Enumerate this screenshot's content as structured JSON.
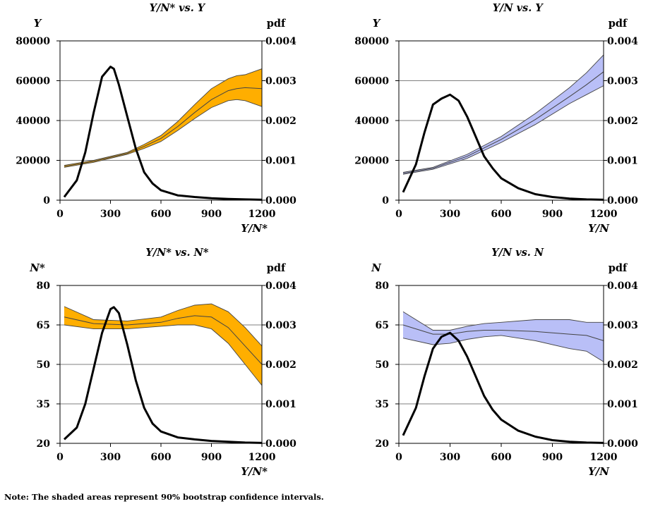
{
  "figure_note": "Note: The shaded areas represent 90% bootstrap confidence intervals.",
  "colors": {
    "orange_band": "#FFAE00",
    "blue_band": "#B9BFF7",
    "gray_band": "#A0A0A0",
    "band_edge": "#444444",
    "pdf_line": "#000000",
    "grid": "#000000"
  },
  "chart_data": [
    {
      "type": "line",
      "title": "Y/N* vs. Y",
      "ylabel": "Y",
      "y2label": "pdf",
      "xlabel": "Y/N*",
      "xlim": [
        0,
        1200
      ],
      "xticks": [
        0,
        300,
        600,
        900,
        1200
      ],
      "ylim": [
        0,
        80000
      ],
      "yticks": [
        "0",
        "20000",
        "40000",
        "60000",
        "80000"
      ],
      "y2lim": [
        0,
        0.004
      ],
      "y2ticks": [
        "0.000",
        "0.001",
        "0.002",
        "0.003",
        "0.004"
      ],
      "grid": true,
      "band_color": "orange",
      "series": [
        {
          "role": "pdf",
          "axis": "right",
          "x": [
            25,
            100,
            150,
            200,
            250,
            300,
            320,
            350,
            400,
            450,
            500,
            550,
            600,
            700,
            800,
            900,
            1000,
            1100,
            1200
          ],
          "y": [
            8e-05,
            0.0005,
            0.0012,
            0.0022,
            0.0031,
            0.00335,
            0.0033,
            0.0029,
            0.0021,
            0.0013,
            0.0007,
            0.00042,
            0.00025,
            0.00012,
            8e-05,
            5e-05,
            3e-05,
            2e-05,
            1e-05
          ]
        },
        {
          "role": "estimate",
          "axis": "left",
          "x": [
            25,
            200,
            400,
            500,
            600,
            700,
            800,
            900,
            1000,
            1050,
            1100,
            1200
          ],
          "y": [
            17000,
            19500,
            23500,
            27000,
            31000,
            37000,
            44000,
            50500,
            55000,
            56000,
            56500,
            56000
          ]
        },
        {
          "role": "ci_upper",
          "axis": "left",
          "x": [
            25,
            200,
            400,
            500,
            600,
            700,
            800,
            900,
            1000,
            1050,
            1100,
            1200
          ],
          "y": [
            17500,
            20000,
            24000,
            28000,
            32500,
            39500,
            48000,
            56000,
            61000,
            62500,
            63000,
            66000
          ]
        },
        {
          "role": "ci_lower",
          "axis": "left",
          "x": [
            25,
            200,
            400,
            500,
            600,
            700,
            800,
            900,
            1000,
            1050,
            1100,
            1200
          ],
          "y": [
            16500,
            19000,
            23000,
            26000,
            29500,
            35000,
            41000,
            46500,
            50000,
            50500,
            50000,
            47000
          ]
        }
      ]
    },
    {
      "type": "line",
      "title": "Y/N vs. Y",
      "ylabel": "Y",
      "y2label": "pdf",
      "xlabel": "Y/N",
      "xlim": [
        0,
        1200
      ],
      "xticks": [
        0,
        300,
        600,
        900,
        1200
      ],
      "ylim": [
        0,
        80000
      ],
      "yticks": [
        "0",
        "20000",
        "40000",
        "60000",
        "80000"
      ],
      "y2lim": [
        0,
        0.004
      ],
      "y2ticks": [
        "0.000",
        "0.001",
        "0.002",
        "0.003",
        "0.004"
      ],
      "grid": true,
      "band_color": "blue",
      "series": [
        {
          "role": "pdf",
          "axis": "right",
          "x": [
            25,
            100,
            150,
            200,
            250,
            300,
            350,
            400,
            450,
            500,
            550,
            600,
            700,
            800,
            900,
            1000,
            1100,
            1200
          ],
          "y": [
            0.0002,
            0.0009,
            0.0017,
            0.0024,
            0.00255,
            0.00265,
            0.0025,
            0.0021,
            0.0016,
            0.0011,
            0.0008,
            0.00055,
            0.0003,
            0.00015,
            8e-05,
            4e-05,
            2e-05,
            1e-05
          ]
        },
        {
          "role": "estimate",
          "axis": "left",
          "x": [
            25,
            200,
            400,
            600,
            800,
            1000,
            1100,
            1200
          ],
          "y": [
            13500,
            16000,
            22000,
            30500,
            40500,
            52000,
            58000,
            64500
          ]
        },
        {
          "role": "ci_upper",
          "axis": "left",
          "x": [
            25,
            200,
            400,
            600,
            800,
            1000,
            1100,
            1200
          ],
          "y": [
            14000,
            16500,
            23000,
            32000,
            43500,
            56500,
            64000,
            73000
          ]
        },
        {
          "role": "ci_lower",
          "axis": "left",
          "x": [
            25,
            200,
            400,
            600,
            800,
            1000,
            1100,
            1200
          ],
          "y": [
            13000,
            15500,
            21000,
            29000,
            38000,
            48500,
            53000,
            57500
          ]
        }
      ]
    },
    {
      "type": "line",
      "title": "Y/N* vs. N*",
      "ylabel": "N*",
      "y2label": "pdf",
      "xlabel": "Y/N*",
      "xlim": [
        0,
        1200
      ],
      "xticks": [
        0,
        300,
        600,
        900,
        1200
      ],
      "ylim": [
        20,
        80
      ],
      "yticks": [
        "20",
        "35",
        "50",
        "65",
        "80"
      ],
      "y2lim": [
        0,
        0.004
      ],
      "y2ticks": [
        "0.000",
        "0.001",
        "0.002",
        "0.003",
        "0.004"
      ],
      "grid": true,
      "band_color": "orange",
      "series": [
        {
          "role": "pdf",
          "axis": "right",
          "x": [
            25,
            100,
            150,
            200,
            250,
            300,
            320,
            350,
            400,
            450,
            500,
            550,
            600,
            700,
            800,
            900,
            1000,
            1100,
            1200
          ],
          "y": [
            0.0001,
            0.0004,
            0.001,
            0.0019,
            0.0028,
            0.0034,
            0.00345,
            0.0033,
            0.0025,
            0.0016,
            0.0009,
            0.0005,
            0.0003,
            0.00015,
            0.0001,
            6e-05,
            4e-05,
            2e-05,
            1e-05
          ]
        },
        {
          "role": "estimate",
          "axis": "left",
          "x": [
            25,
            200,
            400,
            600,
            700,
            800,
            900,
            1000,
            1100,
            1200
          ],
          "y": [
            68,
            65.5,
            65,
            66,
            67.5,
            68.5,
            68,
            64,
            57,
            50
          ]
        },
        {
          "role": "ci_upper",
          "axis": "left",
          "x": [
            25,
            200,
            400,
            600,
            700,
            800,
            900,
            1000,
            1100,
            1200
          ],
          "y": [
            72,
            67,
            66.5,
            68,
            70.5,
            72.5,
            73,
            70,
            64,
            57
          ]
        },
        {
          "role": "ci_lower",
          "axis": "left",
          "x": [
            25,
            200,
            400,
            600,
            700,
            800,
            900,
            1000,
            1100,
            1200
          ],
          "y": [
            65,
            63.5,
            63.5,
            64.5,
            65,
            65,
            63.5,
            58,
            50,
            42
          ]
        }
      ]
    },
    {
      "type": "line",
      "title": "Y/N vs. N",
      "ylabel": "N",
      "y2label": "pdf",
      "xlabel": "Y/N",
      "xlim": [
        0,
        1200
      ],
      "xticks": [
        0,
        300,
        600,
        900,
        1200
      ],
      "ylim": [
        20,
        80
      ],
      "yticks": [
        "20",
        "35",
        "50",
        "65",
        "80"
      ],
      "y2lim": [
        0,
        0.004
      ],
      "y2ticks": [
        "0.000",
        "0.001",
        "0.002",
        "0.003",
        "0.004"
      ],
      "grid": true,
      "band_color": "blue",
      "series": [
        {
          "role": "pdf",
          "axis": "right",
          "x": [
            25,
            100,
            150,
            200,
            250,
            300,
            350,
            400,
            450,
            500,
            550,
            600,
            700,
            800,
            900,
            1000,
            1100,
            1200
          ],
          "y": [
            0.0002,
            0.0009,
            0.0017,
            0.0024,
            0.0027,
            0.0028,
            0.0026,
            0.0022,
            0.0017,
            0.0012,
            0.00085,
            0.0006,
            0.00032,
            0.00017,
            8e-05,
            4e-05,
            2e-05,
            1e-05
          ]
        },
        {
          "role": "estimate",
          "axis": "left",
          "x": [
            25,
            200,
            300,
            400,
            500,
            600,
            800,
            1000,
            1100,
            1200
          ],
          "y": [
            65,
            61.5,
            61.5,
            62.5,
            63,
            63,
            62.5,
            61.5,
            61,
            59
          ]
        },
        {
          "role": "ci_upper",
          "axis": "left",
          "x": [
            25,
            200,
            300,
            400,
            500,
            600,
            800,
            1000,
            1100,
            1200
          ],
          "y": [
            70,
            63,
            63,
            64.5,
            65.5,
            66,
            67,
            67,
            66,
            66
          ]
        },
        {
          "role": "ci_lower",
          "axis": "left",
          "x": [
            25,
            200,
            300,
            400,
            500,
            600,
            800,
            1000,
            1100,
            1200
          ],
          "y": [
            60,
            57.5,
            58,
            59.5,
            60.5,
            61,
            59,
            56,
            55,
            51
          ]
        }
      ]
    }
  ]
}
